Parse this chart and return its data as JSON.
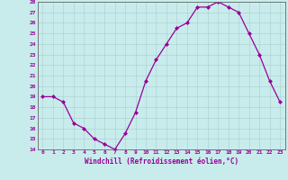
{
  "hours": [
    0,
    1,
    2,
    3,
    4,
    5,
    6,
    7,
    8,
    9,
    10,
    11,
    12,
    13,
    14,
    15,
    16,
    17,
    18,
    19,
    20,
    21,
    22,
    23
  ],
  "temps": [
    19,
    19,
    18.5,
    16.5,
    16,
    15,
    14.5,
    14,
    15.5,
    17.5,
    20.5,
    22.5,
    24,
    25.5,
    26,
    27.5,
    27.5,
    28,
    27.5,
    27,
    25,
    23,
    20.5,
    18.5
  ],
  "ylim": [
    14,
    28
  ],
  "yticks": [
    14,
    15,
    16,
    17,
    18,
    19,
    20,
    21,
    22,
    23,
    24,
    25,
    26,
    27,
    28
  ],
  "xticks": [
    0,
    1,
    2,
    3,
    4,
    5,
    6,
    7,
    8,
    9,
    10,
    11,
    12,
    13,
    14,
    15,
    16,
    17,
    18,
    19,
    20,
    21,
    22,
    23
  ],
  "xlabel": "Windchill (Refroidissement éolien,°C)",
  "line_color": "#990099",
  "marker": "D",
  "marker_size": 2,
  "bg_color": "#c8ecec",
  "grid_color": "#b0d0d0",
  "label_color": "#990099"
}
